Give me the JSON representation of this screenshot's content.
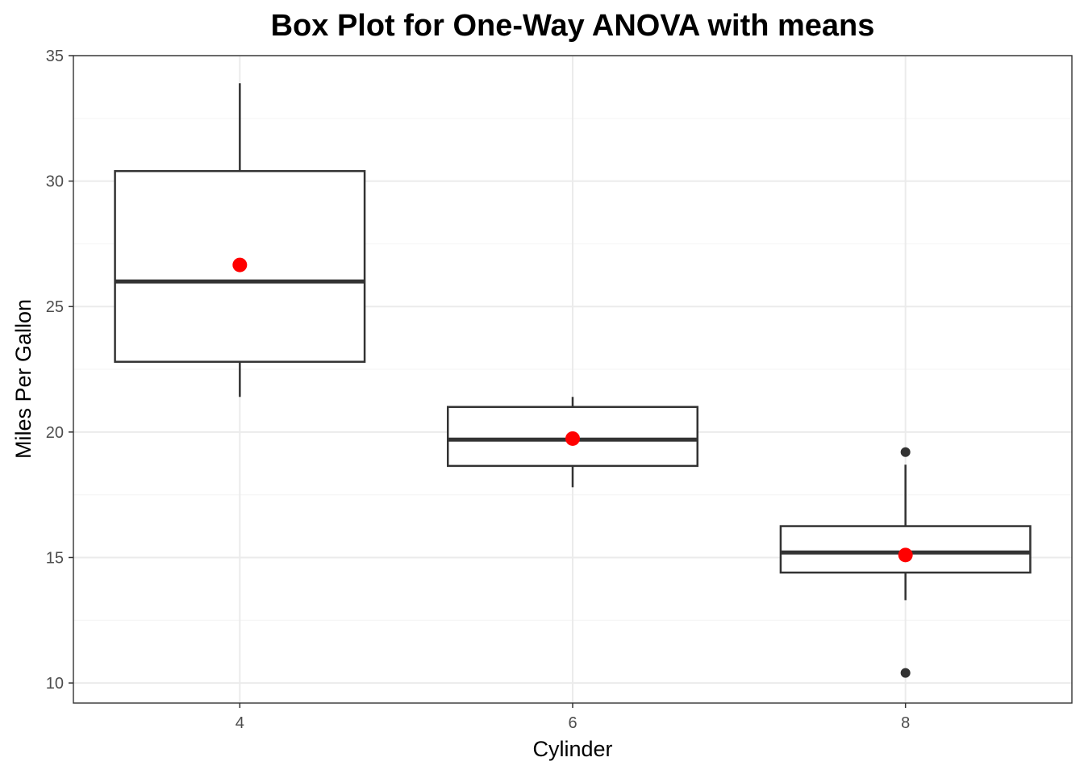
{
  "chart_data": {
    "type": "box",
    "title": "Box Plot for One-Way ANOVA with means",
    "xlabel": "Cylinder",
    "ylabel": "Miles Per Gallon",
    "categories": [
      "4",
      "6",
      "8"
    ],
    "x_tick_labels": [
      "4",
      "6",
      "8"
    ],
    "y_ticks": [
      10,
      15,
      20,
      25,
      30,
      35
    ],
    "y_tick_labels": [
      "10",
      "15",
      "20",
      "25",
      "30",
      "35"
    ],
    "ylim": [
      9.2,
      35.0
    ],
    "grid": true,
    "boxes": [
      {
        "category": "4",
        "whisker_low": 21.4,
        "q1": 22.8,
        "median": 26.0,
        "q3": 30.4,
        "whisker_high": 33.9,
        "mean": 26.66,
        "outliers": []
      },
      {
        "category": "6",
        "whisker_low": 17.8,
        "q1": 18.65,
        "median": 19.7,
        "q3": 21.0,
        "whisker_high": 21.4,
        "mean": 19.74,
        "outliers": []
      },
      {
        "category": "8",
        "whisker_low": 13.3,
        "q1": 14.4,
        "median": 15.2,
        "q3": 16.25,
        "whisker_high": 18.7,
        "mean": 15.1,
        "outliers": [
          10.4,
          19.2
        ]
      }
    ],
    "colors": {
      "box_line": "#333333",
      "mean_point": "#ff0000",
      "outlier": "#333333",
      "grid_major": "#ebebeb",
      "grid_minor": "#f5f5f5",
      "panel_border": "#333333"
    }
  }
}
